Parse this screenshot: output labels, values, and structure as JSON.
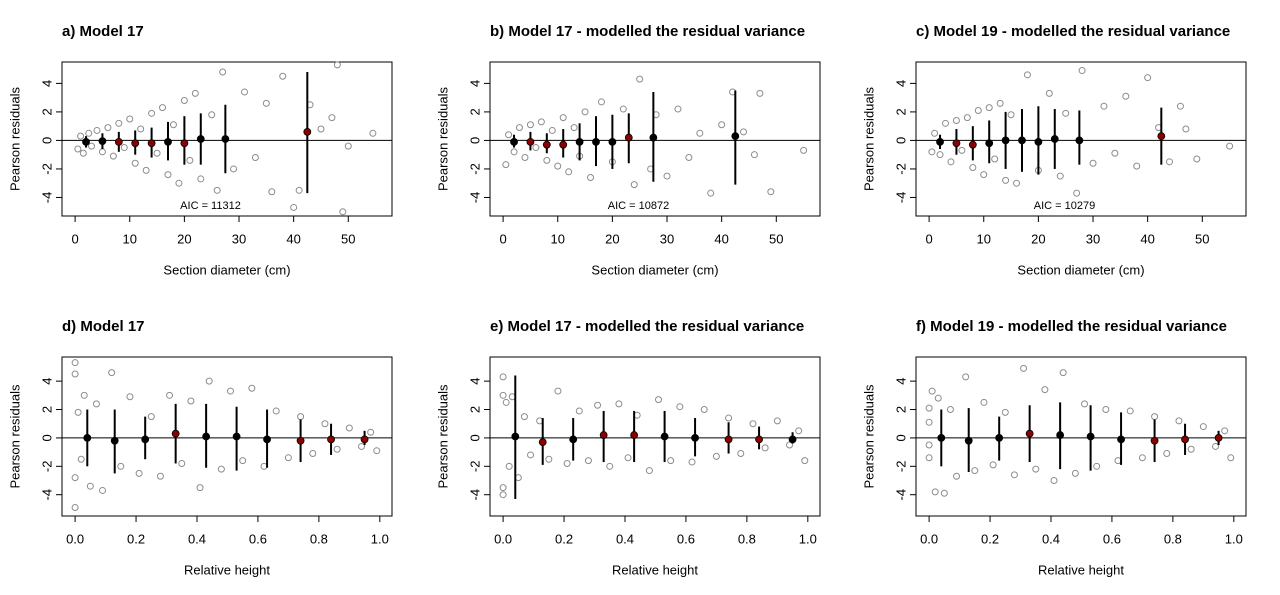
{
  "chart_data": [
    {
      "type": "scatter",
      "title": "a) Model 17",
      "xlabel": "Section diameter (cm)",
      "ylabel": "Pearson residuals",
      "annotation": "AIC = 11312",
      "xlim": [
        -2.4,
        58
      ],
      "ylim": [
        -5.3,
        5.5
      ],
      "xticks": [
        0,
        10,
        20,
        30,
        40,
        50
      ],
      "yticks": [
        -4,
        -2,
        0,
        2,
        4
      ],
      "x": [
        0.5,
        1,
        1.5,
        2.5,
        3,
        4,
        5,
        6,
        7,
        8,
        9,
        10,
        11,
        12,
        13,
        14,
        15,
        16,
        17,
        18,
        19,
        20,
        21,
        22,
        23,
        25,
        26,
        27,
        29,
        31,
        33,
        35,
        36,
        38,
        40,
        41,
        43,
        45,
        47,
        48,
        49,
        50,
        54.5
      ],
      "y": [
        -0.6,
        0.3,
        -0.9,
        0.5,
        -0.4,
        0.7,
        -0.8,
        0.9,
        -1.1,
        1.2,
        -0.5,
        1.5,
        -1.6,
        0.8,
        -2.1,
        1.9,
        -0.9,
        2.3,
        -2.4,
        1.1,
        -3.0,
        2.8,
        -1.4,
        3.3,
        -2.7,
        1.8,
        -3.5,
        4.8,
        -2.0,
        3.4,
        -1.2,
        2.6,
        -3.6,
        4.5,
        -4.7,
        -3.5,
        2.5,
        0.8,
        1.6,
        5.3,
        -5.0,
        -0.4,
        0.5
      ],
      "bins": {
        "x": [
          2,
          5,
          8,
          11,
          14,
          17,
          20,
          23,
          27.5,
          42.5
        ],
        "y": [
          -0.1,
          -0.05,
          -0.1,
          -0.2,
          -0.2,
          -0.1,
          -0.2,
          0.1,
          0.1,
          0.6
        ],
        "low": [
          -0.5,
          -0.6,
          -0.8,
          -1.0,
          -1.2,
          -1.4,
          -1.7,
          -1.7,
          -2.3,
          -3.7
        ],
        "high": [
          0.3,
          0.5,
          0.6,
          0.7,
          0.9,
          1.3,
          1.7,
          1.9,
          2.5,
          4.8
        ],
        "colors": [
          "#000000",
          "#000000",
          "#8b0000",
          "#8b0000",
          "#8b0000",
          "#000000",
          "#8b0000",
          "#000000",
          "#000000",
          "#8b0000"
        ]
      }
    },
    {
      "type": "scatter",
      "title": "b) Model 17 - modelled the residual variance",
      "xlabel": "Section diameter (cm)",
      "ylabel": "Pearson residuals",
      "annotation": "AIC = 10872",
      "xlim": [
        -2.4,
        58
      ],
      "ylim": [
        -5.3,
        5.5
      ],
      "xticks": [
        0,
        10,
        20,
        30,
        40,
        50
      ],
      "yticks": [
        -4,
        -2,
        0,
        2,
        4
      ],
      "x": [
        0.5,
        1,
        2,
        3,
        4,
        5,
        6,
        7,
        8,
        9,
        10,
        11,
        12,
        13,
        14,
        15,
        16,
        18,
        20,
        22,
        24,
        25,
        27,
        28,
        30,
        32,
        34,
        36,
        38,
        40,
        42,
        44,
        46,
        47,
        49,
        55
      ],
      "y": [
        -1.7,
        0.4,
        -0.8,
        0.9,
        -1.2,
        1.1,
        -0.5,
        1.3,
        -1.4,
        0.7,
        -1.8,
        1.6,
        -2.2,
        0.9,
        -1.1,
        2.0,
        -2.6,
        2.7,
        -1.5,
        2.2,
        -3.1,
        4.3,
        -2.0,
        1.8,
        -2.5,
        2.2,
        -1.2,
        0.5,
        -3.7,
        1.1,
        3.4,
        0.6,
        -1.0,
        3.3,
        -3.6,
        -0.7
      ],
      "bins": {
        "x": [
          2,
          5,
          8,
          11,
          14,
          17,
          20,
          23,
          27.5,
          42.5
        ],
        "y": [
          -0.1,
          -0.1,
          -0.3,
          -0.3,
          -0.1,
          -0.1,
          -0.1,
          0.2,
          0.2,
          0.3
        ],
        "low": [
          -0.5,
          -0.7,
          -0.9,
          -1.2,
          -1.4,
          -1.8,
          -2.0,
          -1.6,
          -2.9,
          -3.1
        ],
        "high": [
          0.4,
          0.6,
          0.5,
          0.8,
          1.2,
          1.7,
          1.8,
          1.9,
          3.4,
          3.5
        ],
        "colors": [
          "#000000",
          "#8b0000",
          "#8b0000",
          "#8b0000",
          "#000000",
          "#000000",
          "#000000",
          "#8b0000",
          "#000000",
          "#000000"
        ]
      }
    },
    {
      "type": "scatter",
      "title": "c) Model 19 - modelled the residual variance",
      "xlabel": "Section diameter (cm)",
      "ylabel": "Pearson residuals",
      "annotation": "AIC = 10279",
      "xlim": [
        -2.4,
        58
      ],
      "ylim": [
        -5.3,
        5.5
      ],
      "xticks": [
        0,
        10,
        20,
        30,
        40,
        50
      ],
      "yticks": [
        -4,
        -2,
        0,
        2,
        4
      ],
      "x": [
        0.5,
        1,
        2,
        3,
        4,
        5,
        6,
        7,
        8,
        9,
        10,
        11,
        12,
        13,
        14,
        15,
        16,
        18,
        20,
        22,
        24,
        25,
        27,
        28,
        30,
        32,
        34,
        36,
        38,
        40,
        42,
        44,
        46,
        47,
        49,
        55
      ],
      "y": [
        -0.8,
        0.5,
        -1.0,
        1.2,
        -1.5,
        1.4,
        -0.7,
        1.6,
        -1.9,
        2.1,
        -2.4,
        2.3,
        -1.3,
        2.6,
        -2.8,
        1.8,
        -3.0,
        4.6,
        -2.1,
        3.3,
        -2.5,
        1.9,
        -3.7,
        4.9,
        -1.6,
        2.4,
        -0.9,
        3.1,
        -1.8,
        4.4,
        0.9,
        -1.5,
        2.4,
        0.8,
        -1.3,
        -0.4
      ],
      "bins": {
        "x": [
          2,
          5,
          8,
          11,
          14,
          17,
          20,
          23,
          27.5,
          42.5
        ],
        "y": [
          -0.1,
          -0.2,
          -0.3,
          -0.2,
          0,
          0,
          -0.1,
          0.1,
          0,
          0.3
        ],
        "low": [
          -0.6,
          -1.0,
          -1.4,
          -1.6,
          -2.0,
          -2.2,
          -2.4,
          -2.0,
          -1.7,
          -1.7
        ],
        "high": [
          0.4,
          0.8,
          1.0,
          1.4,
          2.0,
          2.2,
          2.4,
          2.2,
          2.1,
          2.3
        ],
        "colors": [
          "#000000",
          "#8b0000",
          "#8b0000",
          "#000000",
          "#000000",
          "#000000",
          "#000000",
          "#000000",
          "#000000",
          "#8b0000"
        ]
      }
    },
    {
      "type": "scatter",
      "title": "d) Model 17",
      "xlabel": "Relative height",
      "ylabel": "Pearson residuals",
      "xlim": [
        -0.043,
        1.04
      ],
      "ylim": [
        -5.5,
        5.7
      ],
      "xticks": [
        {
          "value": 0,
          "label": "0.0"
        },
        {
          "value": 0.2,
          "label": "0.2"
        },
        {
          "value": 0.4,
          "label": "0.4"
        },
        {
          "value": 0.6,
          "label": "0.6"
        },
        {
          "value": 0.8,
          "label": "0.8"
        },
        {
          "value": 1,
          "label": "1.0"
        }
      ],
      "yticks": [
        -4,
        -2,
        0,
        2,
        4
      ],
      "x": [
        0,
        0,
        0,
        0,
        0.01,
        0.02,
        0.03,
        0.05,
        0.07,
        0.09,
        0.12,
        0.15,
        0.18,
        0.21,
        0.25,
        0.28,
        0.31,
        0.35,
        0.38,
        0.41,
        0.44,
        0.48,
        0.51,
        0.55,
        0.58,
        0.62,
        0.66,
        0.7,
        0.74,
        0.78,
        0.82,
        0.86,
        0.9,
        0.94,
        0.97,
        0.99
      ],
      "y": [
        5.3,
        -4.9,
        4.5,
        -2.8,
        1.8,
        -1.5,
        3.0,
        -3.4,
        2.4,
        -3.7,
        4.6,
        -2.0,
        2.9,
        -2.5,
        1.5,
        -2.7,
        3.0,
        -1.8,
        2.6,
        -3.5,
        4.0,
        -2.2,
        3.3,
        -1.6,
        3.5,
        -2.0,
        1.9,
        -1.4,
        1.5,
        -1.1,
        1.0,
        -0.8,
        0.7,
        -0.6,
        0.4,
        -0.9
      ],
      "bins": {
        "x": [
          0.04,
          0.13,
          0.23,
          0.33,
          0.43,
          0.53,
          0.63,
          0.74,
          0.84,
          0.95
        ],
        "y": [
          0,
          -0.2,
          -0.1,
          0.3,
          0.1,
          0.1,
          -0.1,
          -0.2,
          -0.1,
          -0.1
        ],
        "low": [
          -2,
          -2.5,
          -1.5,
          -1.8,
          -2.1,
          -2.3,
          -2.1,
          -1.7,
          -1.2,
          -0.5
        ],
        "high": [
          2,
          2,
          1.5,
          2.4,
          2.4,
          2.2,
          2.0,
          1.3,
          1,
          0.5
        ],
        "colors": [
          "#000000",
          "#000000",
          "#000000",
          "#8b0000",
          "#000000",
          "#000000",
          "#000000",
          "#8b0000",
          "#8b0000",
          "#8b0000"
        ]
      }
    },
    {
      "type": "scatter",
      "title": "e) Model 17 - modelled the residual variance",
      "xlabel": "Relative height",
      "ylabel": "Pearson residuals",
      "xlim": [
        -0.043,
        1.04
      ],
      "ylim": [
        -5.5,
        5.7
      ],
      "xticks": [
        {
          "value": 0,
          "label": "0.0"
        },
        {
          "value": 0.2,
          "label": "0.2"
        },
        {
          "value": 0.4,
          "label": "0.4"
        },
        {
          "value": 0.6,
          "label": "0.6"
        },
        {
          "value": 0.8,
          "label": "0.8"
        },
        {
          "value": 1,
          "label": "1.0"
        }
      ],
      "yticks": [
        -4,
        -2,
        0,
        2,
        4
      ],
      "x": [
        0,
        0,
        0,
        0,
        0.01,
        0.02,
        0.03,
        0.05,
        0.07,
        0.09,
        0.12,
        0.15,
        0.18,
        0.21,
        0.25,
        0.28,
        0.31,
        0.35,
        0.38,
        0.41,
        0.44,
        0.48,
        0.51,
        0.55,
        0.58,
        0.62,
        0.66,
        0.7,
        0.74,
        0.78,
        0.82,
        0.86,
        0.9,
        0.94,
        0.97,
        0.99
      ],
      "y": [
        4.3,
        -4.0,
        3.0,
        -3.5,
        2.5,
        -2.0,
        2.9,
        -2.8,
        1.5,
        -1.2,
        1.2,
        -1.5,
        3.3,
        -1.8,
        1.9,
        -1.6,
        2.3,
        -2.0,
        2.4,
        -1.4,
        1.6,
        -2.3,
        2.7,
        -1.6,
        2.2,
        -1.7,
        2.0,
        -1.3,
        1.4,
        -1.1,
        1.0,
        -0.7,
        1.2,
        -0.5,
        0.5,
        -1.6
      ],
      "bins": {
        "x": [
          0.04,
          0.13,
          0.23,
          0.33,
          0.43,
          0.53,
          0.63,
          0.74,
          0.84,
          0.95
        ],
        "y": [
          0.1,
          -0.3,
          -0.1,
          0.2,
          0.2,
          0.1,
          0,
          -0.1,
          -0.1,
          -0.1
        ],
        "low": [
          -4.3,
          -1.9,
          -1.6,
          -1.7,
          -1.7,
          -1.7,
          -1.3,
          -1.1,
          -0.8,
          -0.4
        ],
        "high": [
          4.4,
          1.4,
          1.4,
          1.9,
          1.9,
          1.9,
          1.4,
          1.1,
          0.8,
          0.4
        ],
        "colors": [
          "#000000",
          "#8b0000",
          "#000000",
          "#8b0000",
          "#8b0000",
          "#000000",
          "#000000",
          "#8b0000",
          "#8b0000",
          "#000000"
        ]
      }
    },
    {
      "type": "scatter",
      "title": "f) Model 19 - modelled the residual variance",
      "xlabel": "Relative height",
      "ylabel": "Pearson residuals",
      "xlim": [
        -0.043,
        1.04
      ],
      "ylim": [
        -5.5,
        5.7
      ],
      "xticks": [
        {
          "value": 0,
          "label": "0.0"
        },
        {
          "value": 0.2,
          "label": "0.2"
        },
        {
          "value": 0.4,
          "label": "0.4"
        },
        {
          "value": 0.6,
          "label": "0.6"
        },
        {
          "value": 0.8,
          "label": "0.8"
        },
        {
          "value": 1,
          "label": "1.0"
        }
      ],
      "yticks": [
        -4,
        -2,
        0,
        2,
        4
      ],
      "x": [
        0,
        0,
        0,
        0,
        0.01,
        0.02,
        0.03,
        0.05,
        0.07,
        0.09,
        0.12,
        0.15,
        0.18,
        0.21,
        0.25,
        0.28,
        0.31,
        0.35,
        0.38,
        0.41,
        0.44,
        0.48,
        0.51,
        0.55,
        0.58,
        0.62,
        0.66,
        0.7,
        0.74,
        0.78,
        0.82,
        0.86,
        0.9,
        0.94,
        0.97,
        0.99
      ],
      "y": [
        2.1,
        -1.4,
        1.1,
        -0.5,
        3.3,
        -3.8,
        2.8,
        -3.9,
        2.0,
        -2.7,
        4.3,
        -2.3,
        2.5,
        -1.9,
        1.8,
        -2.6,
        4.9,
        -2.2,
        3.4,
        -3.0,
        4.6,
        -2.5,
        2.4,
        -2.0,
        2.0,
        -1.6,
        1.9,
        -1.4,
        1.5,
        -1.1,
        1.2,
        -0.8,
        0.8,
        -0.6,
        0.5,
        -1.4
      ],
      "bins": {
        "x": [
          0.04,
          0.13,
          0.23,
          0.33,
          0.43,
          0.53,
          0.63,
          0.74,
          0.84,
          0.95
        ],
        "y": [
          0,
          -0.2,
          0,
          0.3,
          0.2,
          0.1,
          -0.1,
          -0.2,
          -0.1,
          0
        ],
        "low": [
          -2,
          -2.4,
          -1.6,
          -1.7,
          -2.2,
          -2.3,
          -1.9,
          -1.7,
          -1.2,
          -0.5
        ],
        "high": [
          2,
          2.1,
          1.5,
          2.3,
          2.5,
          2.3,
          1.8,
          1.3,
          1,
          0.5
        ],
        "colors": [
          "#000000",
          "#000000",
          "#000000",
          "#8b0000",
          "#000000",
          "#000000",
          "#000000",
          "#8b0000",
          "#8b0000",
          "#8b0000"
        ]
      }
    }
  ]
}
